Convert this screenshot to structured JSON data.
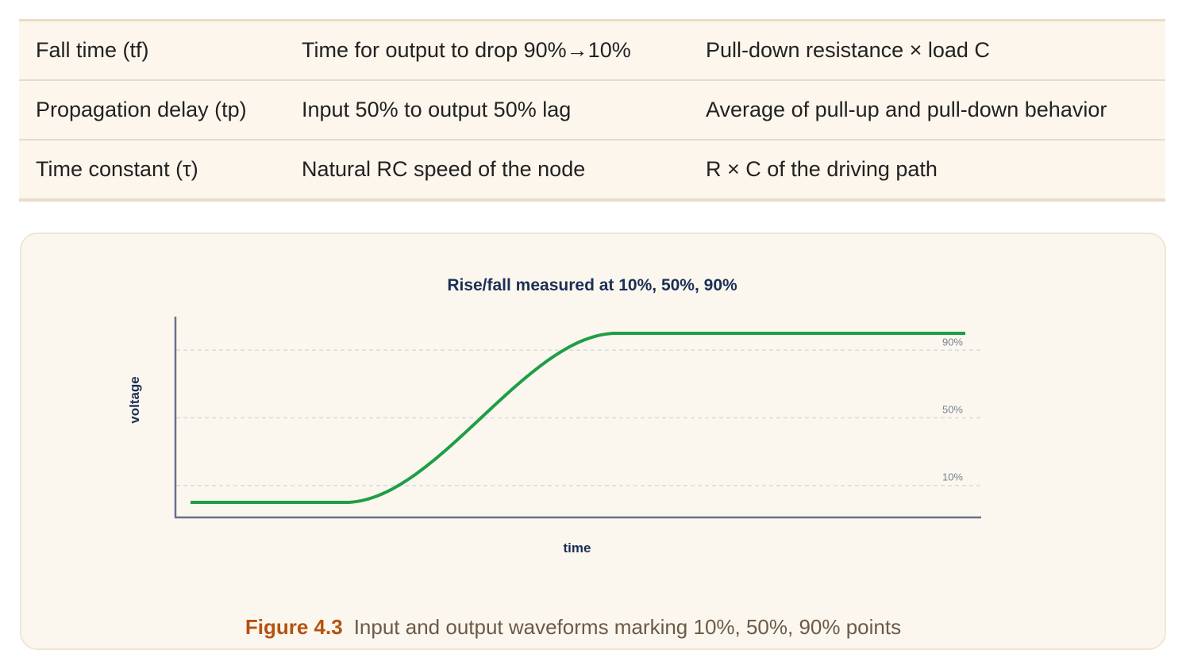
{
  "table": {
    "rows": [
      {
        "term": "Fall time (tf)",
        "meaning": "Time for output to drop 90%→10%",
        "driver": "Pull-down resistance × load C"
      },
      {
        "term": "Propagation delay (tp)",
        "meaning": "Input 50% to output 50% lag",
        "driver": "Average of pull-up and pull-down behavior"
      },
      {
        "term": "Time constant (τ)",
        "meaning": "Natural RC speed of the node",
        "driver": "R × C of the driving path"
      }
    ]
  },
  "figure": {
    "number": "Figure 4.3",
    "caption": "Input and output waveforms marking 10%, 50%, 90% points"
  },
  "chart_data": {
    "type": "line",
    "title": "Rise/fall measured at 10%, 50%, 90%",
    "xlabel": "time",
    "ylabel": "voltage",
    "reference_lines": [
      {
        "label": "90%",
        "level": 0.9
      },
      {
        "label": "50%",
        "level": 0.5
      },
      {
        "label": "10%",
        "level": 0.1
      }
    ],
    "series": [
      {
        "color": "#1e9e46",
        "x": [
          0.0,
          0.2,
          0.27,
          0.36,
          0.47,
          0.55,
          1.0
        ],
        "y": [
          0.0,
          0.0,
          0.1,
          0.5,
          0.9,
          1.0,
          1.0
        ]
      }
    ],
    "ylim": [
      -0.1,
      1.1
    ],
    "xlim": [
      0,
      1
    ],
    "colors": {
      "axis": "#66708a",
      "grid": "#d9dbe0",
      "title": "#1b2f55",
      "ref_label": "#7a8191"
    }
  }
}
